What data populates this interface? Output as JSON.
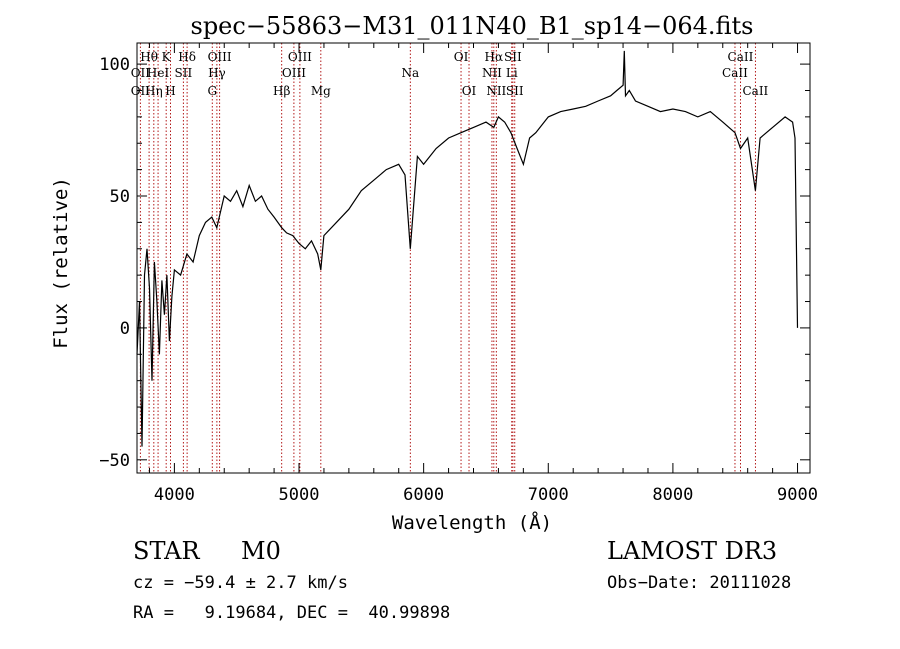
{
  "chart_data": {
    "type": "line",
    "title": "spec−55863−M31_011N40_B1_sp14−064.fits",
    "xlabel": "Wavelength (Å)",
    "ylabel": "Flux (relative)",
    "xlim": [
      3700,
      9100
    ],
    "ylim": [
      -55,
      108
    ],
    "x_ticks": [
      4000,
      5000,
      6000,
      7000,
      8000,
      9000
    ],
    "x_tick_labels": [
      "4000",
      "5000",
      "6000",
      "7000",
      "8000",
      "9000"
    ],
    "y_ticks": [
      -50,
      0,
      50,
      100
    ],
    "y_tick_labels": [
      "−50",
      "0",
      "50",
      "100"
    ],
    "series": [
      {
        "name": "flux",
        "color": "#000000",
        "x": [
          3700,
          3720,
          3740,
          3760,
          3780,
          3800,
          3820,
          3840,
          3860,
          3880,
          3900,
          3920,
          3940,
          3960,
          3980,
          4000,
          4050,
          4100,
          4150,
          4200,
          4250,
          4300,
          4340,
          4400,
          4450,
          4500,
          4550,
          4600,
          4650,
          4700,
          4750,
          4800,
          4861,
          4900,
          4950,
          5000,
          5050,
          5100,
          5150,
          5175,
          5200,
          5300,
          5400,
          5500,
          5600,
          5700,
          5800,
          5850,
          5893,
          5950,
          6000,
          6100,
          6200,
          6300,
          6400,
          6500,
          6563,
          6600,
          6650,
          6700,
          6750,
          6800,
          6850,
          6900,
          7000,
          7100,
          7200,
          7300,
          7400,
          7500,
          7550,
          7600,
          7610,
          7620,
          7650,
          7700,
          7800,
          7900,
          8000,
          8100,
          8200,
          8300,
          8400,
          8498,
          8542,
          8600,
          8662,
          8700,
          8800,
          8900,
          8960,
          8980,
          9000
        ],
        "values": [
          -10,
          10,
          -45,
          20,
          30,
          15,
          -20,
          25,
          10,
          -10,
          18,
          5,
          20,
          -5,
          12,
          22,
          20,
          28,
          25,
          35,
          40,
          42,
          38,
          50,
          48,
          52,
          46,
          54,
          48,
          50,
          45,
          42,
          38,
          36,
          35,
          32,
          30,
          33,
          28,
          22,
          35,
          40,
          45,
          52,
          56,
          60,
          62,
          58,
          30,
          65,
          62,
          68,
          72,
          74,
          76,
          78,
          76,
          80,
          78,
          74,
          68,
          62,
          72,
          74,
          80,
          82,
          83,
          84,
          86,
          88,
          90,
          92,
          105,
          88,
          90,
          86,
          84,
          82,
          83,
          82,
          80,
          82,
          78,
          74,
          68,
          72,
          52,
          72,
          76,
          80,
          78,
          72,
          0
        ]
      }
    ],
    "lines": [
      {
        "x": 3727,
        "upper": "",
        "mid": "OII",
        "low": "OII"
      },
      {
        "x": 3797,
        "upper": "Hθ",
        "mid": "",
        "low": ""
      },
      {
        "x": 3835,
        "upper": "",
        "mid": "",
        "low": "Hη"
      },
      {
        "x": 3869,
        "upper": "",
        "mid": "HeI",
        "low": ""
      },
      {
        "x": 3934,
        "upper": "K",
        "mid": "",
        "low": ""
      },
      {
        "x": 3969,
        "upper": "",
        "mid": "",
        "low": "H"
      },
      {
        "x": 4072,
        "upper": "",
        "mid": "SII",
        "low": ""
      },
      {
        "x": 4102,
        "upper": "Hδ",
        "mid": "",
        "low": ""
      },
      {
        "x": 4304,
        "upper": "",
        "mid": "",
        "low": "G"
      },
      {
        "x": 4341,
        "upper": "",
        "mid": "Hγ",
        "low": ""
      },
      {
        "x": 4363,
        "upper": "OIII",
        "mid": "",
        "low": ""
      },
      {
        "x": 4861,
        "upper": "",
        "mid": "",
        "low": "Hβ"
      },
      {
        "x": 4959,
        "upper": "",
        "mid": "OIII",
        "low": ""
      },
      {
        "x": 5007,
        "upper": "OIII",
        "mid": "",
        "low": ""
      },
      {
        "x": 5175,
        "upper": "",
        "mid": "",
        "low": "Mg"
      },
      {
        "x": 5893,
        "upper": "",
        "mid": "Na",
        "low": ""
      },
      {
        "x": 6300,
        "upper": "OI",
        "mid": "",
        "low": ""
      },
      {
        "x": 6364,
        "upper": "",
        "mid": "",
        "low": "OI"
      },
      {
        "x": 6548,
        "upper": "",
        "mid": "NII",
        "low": ""
      },
      {
        "x": 6563,
        "upper": "Hα",
        "mid": "",
        "low": ""
      },
      {
        "x": 6583,
        "upper": "",
        "mid": "",
        "low": "NII"
      },
      {
        "x": 6707,
        "upper": "",
        "mid": "Li",
        "low": ""
      },
      {
        "x": 6716,
        "upper": "SII",
        "mid": "",
        "low": ""
      },
      {
        "x": 6731,
        "upper": "",
        "mid": "",
        "low": "SII"
      },
      {
        "x": 8498,
        "upper": "",
        "mid": "CaII",
        "low": ""
      },
      {
        "x": 8542,
        "upper": "CaII",
        "mid": "",
        "low": ""
      },
      {
        "x": 8662,
        "upper": "",
        "mid": "",
        "low": "CaII"
      }
    ],
    "line_color": "#aa0000",
    "grid": false
  },
  "info": {
    "object_class": "STAR",
    "subclass": "M0",
    "survey": "LAMOST DR3",
    "cz": "cz = −59.4 ± 2.7 km/s",
    "obs_date": "Obs−Date: 20111028",
    "coords": "RA =   9.19684, DEC =  40.99898"
  }
}
